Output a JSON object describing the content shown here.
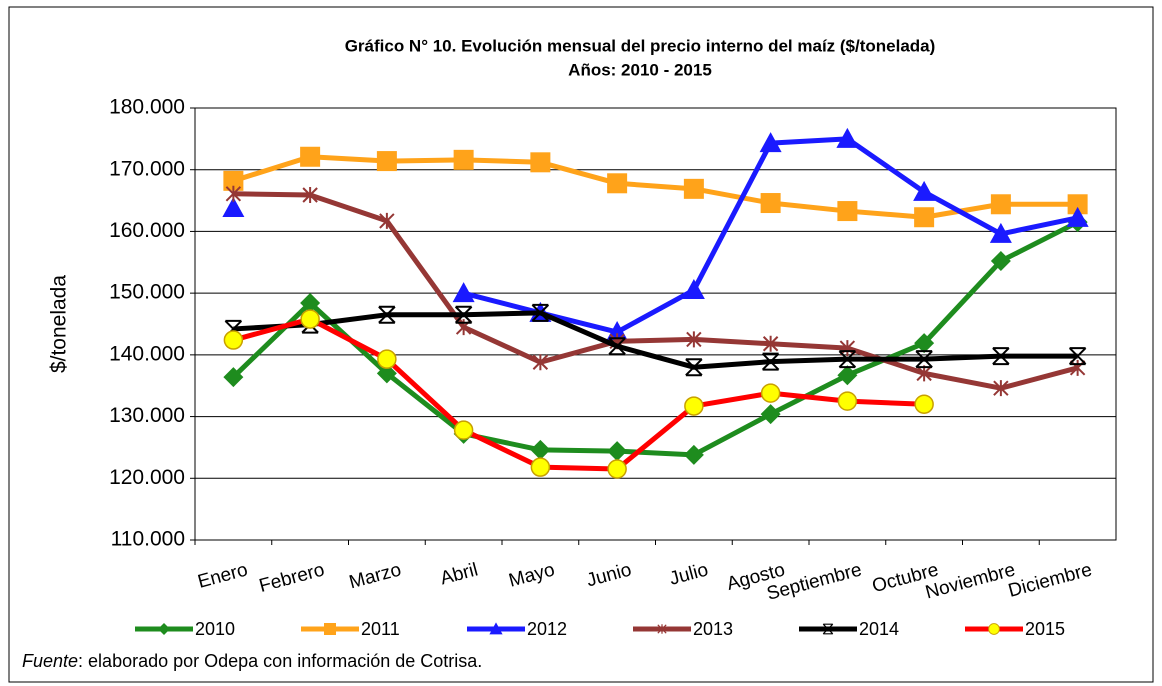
{
  "chart_data": {
    "type": "line",
    "title": "Gráfico N° 10. Evolución mensual del precio interno del maíz ($/tonelada)",
    "subtitle": "Años: 2010 - 2015",
    "y_label": "$/tonelada",
    "categories": [
      "Enero",
      "Febrero",
      "Marzo",
      "Abril",
      "Mayo",
      "Junio",
      "Julio",
      "Agosto",
      "Septiembre",
      "Octubre",
      "Noviembre",
      "Diciembre"
    ],
    "series": [
      {
        "name": "2010",
        "color": "#1e8c1e",
        "values": [
          136400,
          148400,
          137000,
          127200,
          124600,
          124400,
          123800,
          130400,
          136700,
          141900,
          155200,
          161500
        ]
      },
      {
        "name": "2011",
        "color": "#ffa31a",
        "values": [
          168200,
          172100,
          171400,
          171600,
          171200,
          167800,
          166900,
          164600,
          163300,
          162300,
          164400,
          164400
        ]
      },
      {
        "name": "2012",
        "color": "#1a1aff",
        "values": [
          163800,
          null,
          null,
          150000,
          146800,
          143700,
          150500,
          174300,
          175000,
          166400,
          159600,
          162200
        ]
      },
      {
        "name": "2013",
        "color": "#953735",
        "values": [
          166100,
          165900,
          161700,
          144500,
          138800,
          142200,
          142500,
          141800,
          141100,
          137000,
          134600,
          137900
        ]
      },
      {
        "name": "2014",
        "color": "#000000",
        "values": [
          144200,
          144900,
          146500,
          146500,
          146800,
          141400,
          138000,
          138900,
          139300,
          139300,
          139800,
          139800
        ]
      },
      {
        "name": "2015",
        "color": "#ff0000",
        "values": [
          142400,
          145800,
          139300,
          127800,
          121800,
          121500,
          131700,
          133800,
          132500,
          132000,
          null,
          null
        ]
      }
    ],
    "ylim": [
      110000,
      180000
    ],
    "yticks": [
      {
        "value": 110000,
        "label": "110.000"
      },
      {
        "value": 120000,
        "label": "120.000"
      },
      {
        "value": 130000,
        "label": "130.000"
      },
      {
        "value": 140000,
        "label": "140.000"
      },
      {
        "value": 150000,
        "label": "150.000"
      },
      {
        "value": 160000,
        "label": "160.000"
      },
      {
        "value": 170000,
        "label": "170.000"
      },
      {
        "value": 180000,
        "label": "180.000"
      }
    ],
    "grid": true
  },
  "footer": {
    "label": "Fuente",
    "text": ": elaborado por Odepa con información de Cotrisa."
  }
}
